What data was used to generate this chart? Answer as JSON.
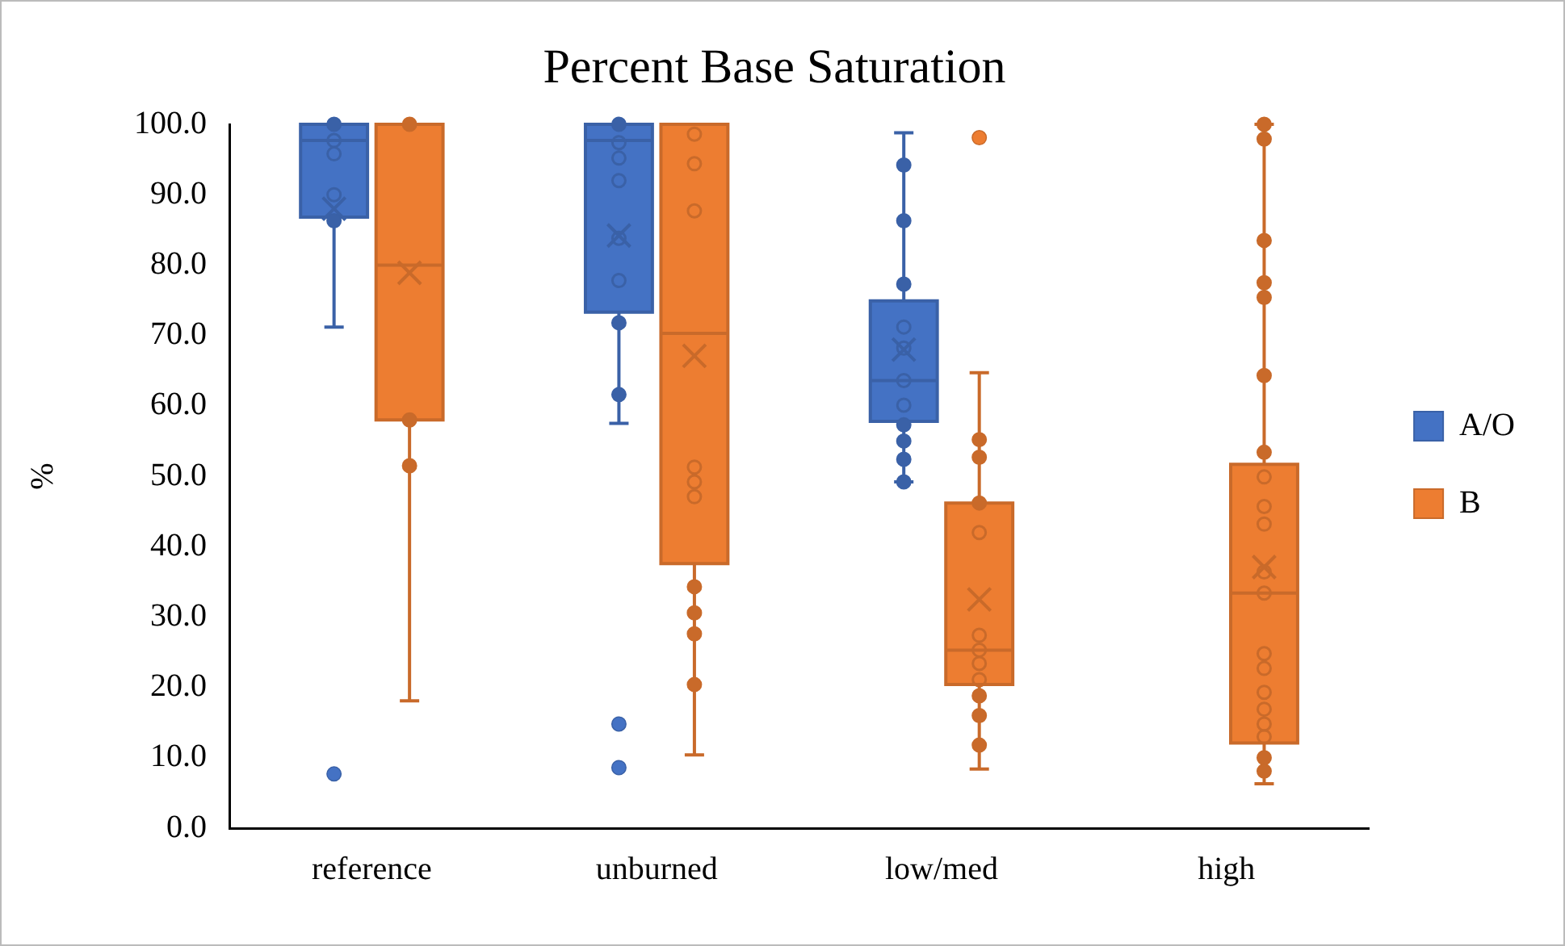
{
  "chart_data": {
    "type": "box",
    "title": "Percent Base Saturation",
    "ylabel": "%",
    "categories": [
      "reference",
      "unburned",
      "low/med",
      "high"
    ],
    "ylim": [
      0,
      100
    ],
    "yticks": [
      {
        "value": 0,
        "label": "0.0"
      },
      {
        "value": 10,
        "label": "10.0"
      },
      {
        "value": 20,
        "label": "20.0"
      },
      {
        "value": 30,
        "label": "30.0"
      },
      {
        "value": 40,
        "label": "40.0"
      },
      {
        "value": 50,
        "label": "50.0"
      },
      {
        "value": 60,
        "label": "60.0"
      },
      {
        "value": 70,
        "label": "70.0"
      },
      {
        "value": 80,
        "label": "80.0"
      },
      {
        "value": 90,
        "label": "90.0"
      },
      {
        "value": 100,
        "label": "100.0"
      }
    ],
    "grid": false,
    "legend": "right",
    "marker": "circle",
    "series": [
      {
        "name": "A/O",
        "type": "box",
        "color": "#4472c4",
        "boxes": [
          {
            "low": 71.2,
            "q1": 86.8,
            "median": 97.7,
            "q3": 100,
            "high": 100,
            "mean": 88,
            "outliers": [
              7.7
            ]
          },
          {
            "low": 57.5,
            "q1": 73.3,
            "median": 97.7,
            "q3": 100,
            "high": 100,
            "mean": 84.2,
            "outliers": [
              14.8,
              8.6
            ]
          },
          {
            "low": 49.2,
            "q1": 57.8,
            "median": 63.6,
            "q3": 74.9,
            "high": 98.8,
            "mean": 68.0
          },
          null
        ]
      },
      {
        "name": "B",
        "type": "box",
        "color": "#ed7d31",
        "boxes": [
          {
            "low": 18.1,
            "q1": 58.0,
            "median": 80.0,
            "q3": 100,
            "high": 100,
            "mean": 78.9
          },
          {
            "low": 10.4,
            "q1": 37.6,
            "median": 70.3,
            "q3": 100,
            "high": 100,
            "mean": 67.1
          },
          {
            "low": 8.4,
            "q1": 20.4,
            "median": 25.3,
            "q3": 46.2,
            "high": 64.7,
            "mean": 32.5,
            "outliers": [
              98.1
            ]
          },
          {
            "low": 6.3,
            "q1": 12.1,
            "median": 33.4,
            "q3": 51.7,
            "high": 100,
            "mean": 37.1
          }
        ]
      },
      {
        "type": "scatter",
        "color": "#3a61a7",
        "x": [
          "reference",
          "reference",
          "reference",
          "reference",
          "reference",
          "unburned",
          "unburned",
          "unburned",
          "unburned",
          "unburned",
          "unburned",
          "unburned",
          "unburned",
          "low/med",
          "low/med",
          "low/med",
          "low/med",
          "low/med",
          "low/med",
          "low/med",
          "low/med",
          "low/med",
          "low/med",
          "low/med"
        ],
        "values": [
          100,
          97.7,
          95.8,
          90,
          86.3,
          100,
          97.4,
          95.2,
          92.0,
          83.8,
          77.8,
          71.8,
          61.6,
          94.2,
          86.3,
          77.3,
          71.2,
          68.2,
          63.6,
          60.1,
          57.3,
          55.0,
          52.4,
          49.2
        ]
      },
      {
        "type": "scatter",
        "color": "#c96a2a",
        "x": [
          "reference",
          "reference",
          "reference",
          "unburned",
          "unburned",
          "unburned",
          "unburned",
          "unburned",
          "unburned",
          "unburned",
          "unburned",
          "unburned",
          "unburned",
          "low/med",
          "low/med",
          "low/med",
          "low/med",
          "low/med",
          "low/med",
          "low/med",
          "low/med",
          "low/med",
          "low/med",
          "low/med",
          "high",
          "high",
          "high",
          "high",
          "high",
          "high",
          "high",
          "high",
          "high",
          "high",
          "high",
          "high",
          "high",
          "high",
          "high",
          "high",
          "high",
          "high",
          "high",
          "high"
        ],
        "values": [
          100,
          58,
          51.5,
          98.6,
          94.4,
          87.7,
          51.3,
          49.2,
          47.1,
          34.3,
          30.6,
          27.6,
          20.4,
          55.2,
          52.7,
          46.2,
          42.0,
          27.4,
          25.3,
          23.4,
          21.1,
          18.8,
          16.0,
          11.8,
          97.9,
          83.5,
          77.5,
          75.4,
          64.3,
          53.4,
          49.9,
          45.7,
          43.2,
          36.4,
          33.4,
          24.8,
          22.7,
          19.3,
          16.9,
          14.8,
          13.0,
          10.0,
          8.1,
          100
        ]
      }
    ]
  }
}
